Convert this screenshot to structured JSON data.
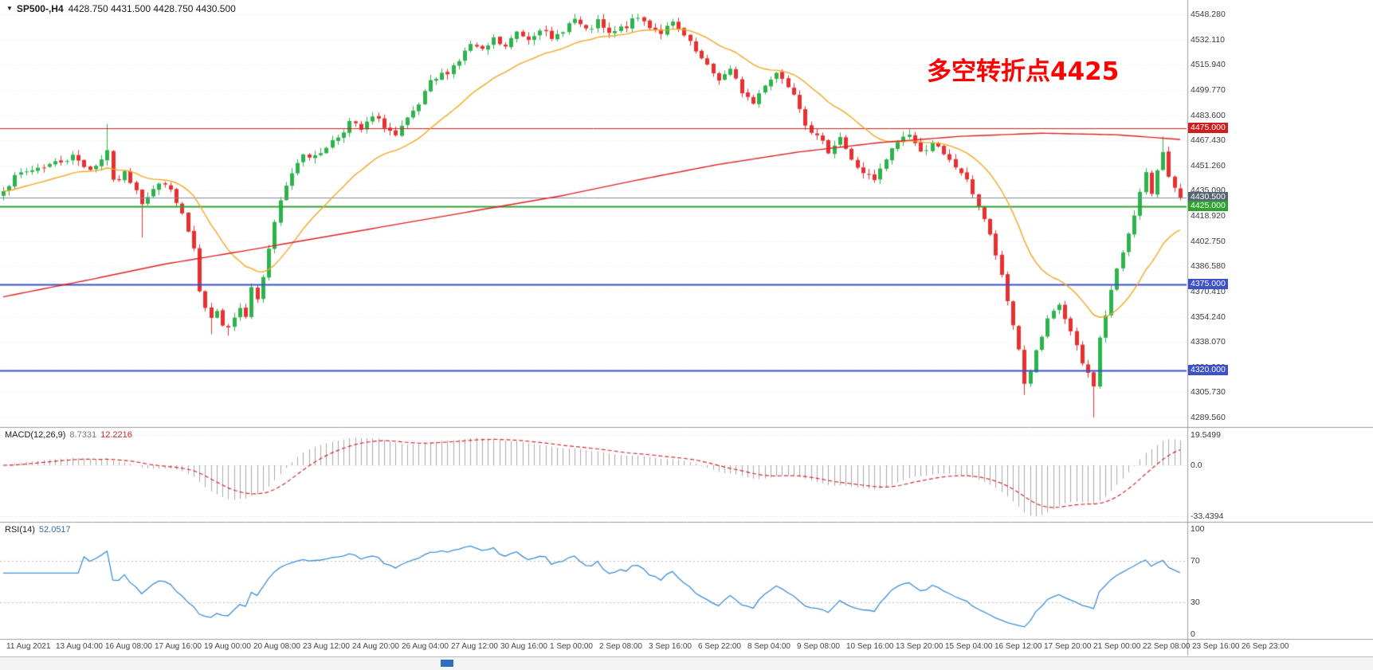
{
  "header": {
    "menu_icon": "▼",
    "symbol": "SP500-,H4",
    "ohlc": "4428.750 4431.500 4428.750 4430.500"
  },
  "annotation": {
    "text": "多空转折点4425",
    "color": "#ff0000"
  },
  "chart_data": {
    "type": "candlestick",
    "symbol": "SP500-",
    "timeframe": "H4",
    "ohlc_last": {
      "open": 4428.75,
      "high": 4431.5,
      "low": 4428.75,
      "close": 4430.5
    },
    "current_price": 4430.5,
    "price_axis": {
      "ylim": [
        4282,
        4557
      ],
      "labels": [
        "4548.280",
        "4532.110",
        "4515.940",
        "4499.770",
        "4483.600",
        "4467.430",
        "4451.260",
        "4435.090",
        "4418.920",
        "4402.750",
        "4386.580",
        "4370.410",
        "4354.240",
        "4338.070",
        "4321.900",
        "4305.730",
        "4289.560"
      ],
      "tags": [
        {
          "text": "4475.000",
          "price": 4475.0,
          "color": "#cc1f1f"
        },
        {
          "text": "4430.500",
          "price": 4430.5,
          "color": "#566573"
        },
        {
          "text": "4425.000",
          "price": 4425.0,
          "color": "#2fa12f"
        },
        {
          "text": "4375.000",
          "price": 4375.0,
          "color": "#3c50c8"
        },
        {
          "text": "4320.000",
          "price": 4320.0,
          "color": "#3c50c8"
        }
      ]
    },
    "levels": [
      {
        "name": "resistance-4475",
        "price": 4475.0,
        "color": "#cc1f1f",
        "width": 1
      },
      {
        "name": "pivot-4425",
        "price": 4425.0,
        "color": "#2fa12f",
        "width": 2
      },
      {
        "name": "support-4375",
        "price": 4375.0,
        "color": "#3c50c8",
        "width": 2
      },
      {
        "name": "support-4320",
        "price": 4320.0,
        "color": "#3c50c8",
        "width": 2
      }
    ],
    "candles": {
      "count": 205,
      "up_color": "#2eb24e",
      "down_color": "#e93030",
      "close_keyframes": [
        [
          0,
          4437
        ],
        [
          3,
          4446
        ],
        [
          6,
          4450
        ],
        [
          9,
          4453
        ],
        [
          12,
          4457
        ],
        [
          15,
          4449
        ],
        [
          17,
          4455
        ],
        [
          18,
          4462
        ],
        [
          19,
          4440
        ],
        [
          21,
          4446
        ],
        [
          23,
          4437
        ],
        [
          24,
          4428
        ],
        [
          26,
          4436
        ],
        [
          28,
          4441
        ],
        [
          29,
          4434
        ],
        [
          31,
          4420
        ],
        [
          33,
          4396
        ],
        [
          34,
          4370
        ],
        [
          35,
          4358
        ],
        [
          36,
          4352
        ],
        [
          37,
          4360
        ],
        [
          38,
          4350
        ],
        [
          39,
          4348
        ],
        [
          40,
          4354
        ],
        [
          41,
          4362
        ],
        [
          42,
          4356
        ],
        [
          43,
          4372
        ],
        [
          44,
          4366
        ],
        [
          45,
          4380
        ],
        [
          46,
          4398
        ],
        [
          48,
          4428
        ],
        [
          50,
          4447
        ],
        [
          52,
          4460
        ],
        [
          54,
          4456
        ],
        [
          56,
          4464
        ],
        [
          58,
          4470
        ],
        [
          60,
          4479
        ],
        [
          62,
          4474
        ],
        [
          64,
          4482
        ],
        [
          66,
          4477
        ],
        [
          68,
          4470
        ],
        [
          70,
          4480
        ],
        [
          72,
          4490
        ],
        [
          74,
          4504
        ],
        [
          77,
          4512
        ],
        [
          79,
          4519
        ],
        [
          81,
          4529
        ],
        [
          83,
          4524
        ],
        [
          85,
          4532
        ],
        [
          87,
          4527
        ],
        [
          89,
          4537
        ],
        [
          91,
          4533
        ],
        [
          93,
          4540
        ],
        [
          95,
          4531
        ],
        [
          97,
          4539
        ],
        [
          99,
          4545
        ],
        [
          101,
          4537
        ],
        [
          103,
          4543
        ],
        [
          105,
          4535
        ],
        [
          108,
          4541
        ],
        [
          110,
          4546
        ],
        [
          112,
          4541
        ],
        [
          114,
          4537
        ],
        [
          116,
          4542
        ],
        [
          118,
          4534
        ],
        [
          120,
          4524
        ],
        [
          122,
          4514
        ],
        [
          124,
          4507
        ],
        [
          126,
          4512
        ],
        [
          128,
          4499
        ],
        [
          130,
          4491
        ],
        [
          132,
          4504
        ],
        [
          134,
          4511
        ],
        [
          137,
          4499
        ],
        [
          139,
          4479
        ],
        [
          141,
          4469
        ],
        [
          143,
          4461
        ],
        [
          145,
          4470
        ],
        [
          147,
          4454
        ],
        [
          149,
          4447
        ],
        [
          151,
          4441
        ],
        [
          153,
          4455
        ],
        [
          155,
          4467
        ],
        [
          157,
          4472
        ],
        [
          159,
          4459
        ],
        [
          161,
          4467
        ],
        [
          163,
          4457
        ],
        [
          166,
          4447
        ],
        [
          168,
          4434
        ],
        [
          170,
          4417
        ],
        [
          172,
          4394
        ],
        [
          174,
          4364
        ],
        [
          176,
          4334
        ],
        [
          177,
          4311
        ],
        [
          178,
          4320
        ],
        [
          179,
          4331
        ],
        [
          181,
          4351
        ],
        [
          183,
          4362
        ],
        [
          185,
          4344
        ],
        [
          187,
          4324
        ],
        [
          189,
          4311
        ],
        [
          190,
          4340
        ],
        [
          192,
          4371
        ],
        [
          194,
          4396
        ],
        [
          196,
          4421
        ],
        [
          198,
          4446
        ],
        [
          199,
          4431
        ],
        [
          200,
          4449
        ],
        [
          201,
          4461
        ],
        [
          202,
          4446
        ],
        [
          203,
          4436
        ],
        [
          204,
          4430.5
        ]
      ],
      "extreme_wicks": [
        {
          "i": 18,
          "high": 4478
        },
        {
          "i": 24,
          "low": 4405
        },
        {
          "i": 36,
          "low": 4343
        },
        {
          "i": 39,
          "low": 4342
        },
        {
          "i": 177,
          "low": 4304
        },
        {
          "i": 189,
          "low": 4289.6
        },
        {
          "i": 201,
          "high": 4470
        }
      ]
    },
    "moving_averages": {
      "fast": {
        "type": "EMA",
        "period": 20,
        "color": "#f5a623"
      },
      "slow": {
        "type": "long-SMA",
        "color": "#e02020",
        "keyframes": [
          [
            0,
            4367
          ],
          [
            15,
            4378
          ],
          [
            28,
            4388
          ],
          [
            41,
            4396
          ],
          [
            55,
            4405
          ],
          [
            69,
            4414
          ],
          [
            83,
            4423
          ],
          [
            97,
            4432
          ],
          [
            110,
            4442
          ],
          [
            124,
            4452
          ],
          [
            138,
            4460
          ],
          [
            152,
            4466
          ],
          [
            166,
            4470
          ],
          [
            180,
            4472
          ],
          [
            193,
            4471
          ],
          [
            204,
            4468
          ]
        ]
      }
    },
    "time_axis": {
      "labels": [
        "11 Aug 2021",
        "13 Aug 04:00",
        "16 Aug 08:00",
        "17 Aug 16:00",
        "19 Aug 00:00",
        "20 Aug 08:00",
        "23 Aug 12:00",
        "24 Aug 20:00",
        "26 Aug 04:00",
        "27 Aug 12:00",
        "30 Aug 16:00",
        "1 Sep 00:00",
        "2 Sep 08:00",
        "3 Sep 16:00",
        "6 Sep 22:00",
        "8 Sep 04:00",
        "9 Sep 08:00",
        "10 Sep 16:00",
        "13 Sep 20:00",
        "15 Sep 04:00",
        "16 Sep 12:00",
        "17 Sep 20:00",
        "21 Sep 00:00",
        "22 Sep 08:00",
        "23 Sep 16:00",
        "26 Sep 23:00"
      ]
    },
    "macd": {
      "label": "MACD(12,26,9)",
      "value_main": "8.7331",
      "value_signal": "12.2216",
      "fast": 12,
      "slow": 26,
      "signal_period": 9,
      "axis_labels": [
        {
          "text": "19.5499",
          "value": 19.5499
        },
        {
          "text": "0.0",
          "value": 0
        },
        {
          "text": "-33.4394",
          "value": -33.4394
        }
      ],
      "histogram_color": "#a6a6a6",
      "signal_color": "#d22c2c"
    },
    "rsi": {
      "label": "RSI(14)",
      "value": "52.0517",
      "period": 14,
      "axis_labels": [
        {
          "text": "100",
          "value": 100
        },
        {
          "text": "70",
          "value": 70
        },
        {
          "text": "30",
          "value": 30
        },
        {
          "text": "0",
          "value": 0
        }
      ],
      "level_lines": [
        70,
        30
      ],
      "line_color": "#3f8fd6"
    }
  },
  "scrollbar": {
    "thumb_color": "#2f6fbd"
  }
}
